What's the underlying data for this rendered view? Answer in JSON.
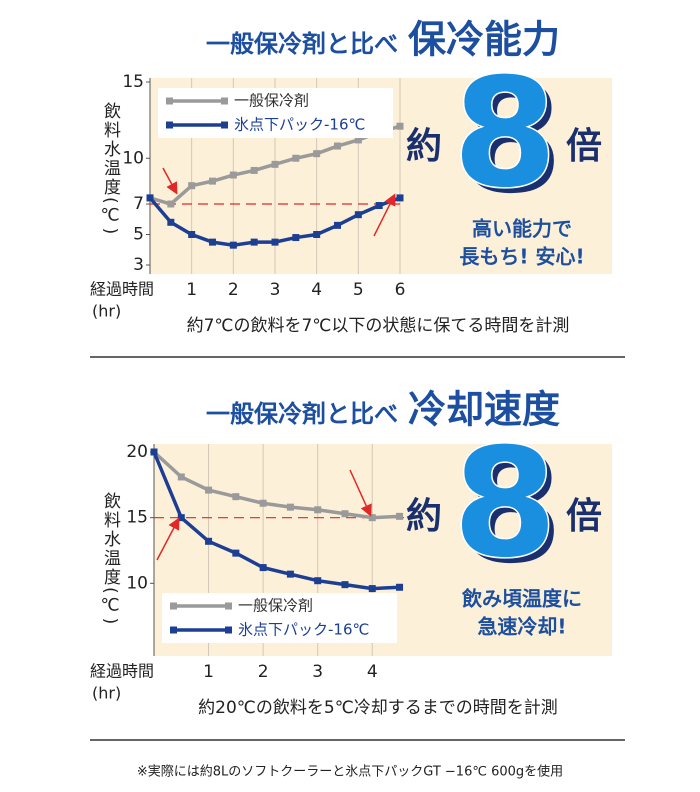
{
  "chart_data": [
    {
      "type": "line",
      "subtitle": "一般保冷剤と比べ",
      "title": "保冷能力",
      "ylabel": "飲料水温度(℃)",
      "xlabel": [
        "経過時間",
        "(hr)"
      ],
      "x": [
        0,
        0.5,
        1,
        1.5,
        2,
        2.5,
        3,
        3.5,
        4,
        4.5,
        5,
        5.5,
        6
      ],
      "series": [
        {
          "name": "一般保冷剤",
          "color": "#9a9a9a",
          "values": [
            7.4,
            7.0,
            8.2,
            8.5,
            8.9,
            9.2,
            9.6,
            10.0,
            10.3,
            10.8,
            11.2,
            11.7,
            12.1
          ]
        },
        {
          "name": "氷点下パック-16℃",
          "color": "#1c3f94",
          "values": [
            7.4,
            5.8,
            5.0,
            4.5,
            4.3,
            4.5,
            4.5,
            4.8,
            5.0,
            5.6,
            6.3,
            6.9,
            7.4
          ]
        }
      ],
      "xlim": [
        0,
        6
      ],
      "xticks": [
        1,
        2,
        3,
        4,
        5,
        6
      ],
      "ylim": [
        3,
        15
      ],
      "yticks": [
        3,
        5,
        7,
        10,
        15
      ],
      "reference_line": 7,
      "legend": "upper left",
      "grid": true,
      "callout": {
        "prefix": "約",
        "number": "8",
        "suffix": "倍",
        "text": [
          "高い能力で",
          "長もち! 安心!"
        ]
      },
      "caption": "約7℃の飲料を7℃以下の状態に保てる時間を計測"
    },
    {
      "type": "line",
      "subtitle": "一般保冷剤と比べ",
      "title": "冷却速度",
      "ylabel": "飲料水温度(℃)",
      "xlabel": [
        "経過時間",
        "(hr)"
      ],
      "x": [
        0,
        0.5,
        1,
        1.5,
        2,
        2.5,
        3,
        3.5,
        4,
        4.5
      ],
      "series": [
        {
          "name": "一般保冷剤",
          "color": "#9a9a9a",
          "values": [
            20,
            18.1,
            17.1,
            16.6,
            16.1,
            15.8,
            15.6,
            15.3,
            15.0,
            15.1
          ]
        },
        {
          "name": "氷点下パック-16℃",
          "color": "#1c3f94",
          "values": [
            20,
            15.0,
            13.2,
            12.3,
            11.2,
            10.7,
            10.2,
            9.9,
            9.6,
            9.7
          ]
        }
      ],
      "xlim": [
        0,
        4.6
      ],
      "xticks": [
        1,
        2,
        3,
        4
      ],
      "ylim": [
        5,
        20
      ],
      "yticks": [
        10,
        15,
        20
      ],
      "reference_line": 15,
      "legend": "lower left",
      "grid": true,
      "callout": {
        "prefix": "約",
        "number": "8",
        "suffix": "倍",
        "text": [
          "飲み頃温度に",
          "急速冷却!"
        ]
      },
      "caption": "約20℃の飲料を5℃冷却するまでの時間を計測"
    }
  ],
  "note": "※実際には約8Lのソフトクーラーと氷点下パックGT −16℃ 600gを使用"
}
